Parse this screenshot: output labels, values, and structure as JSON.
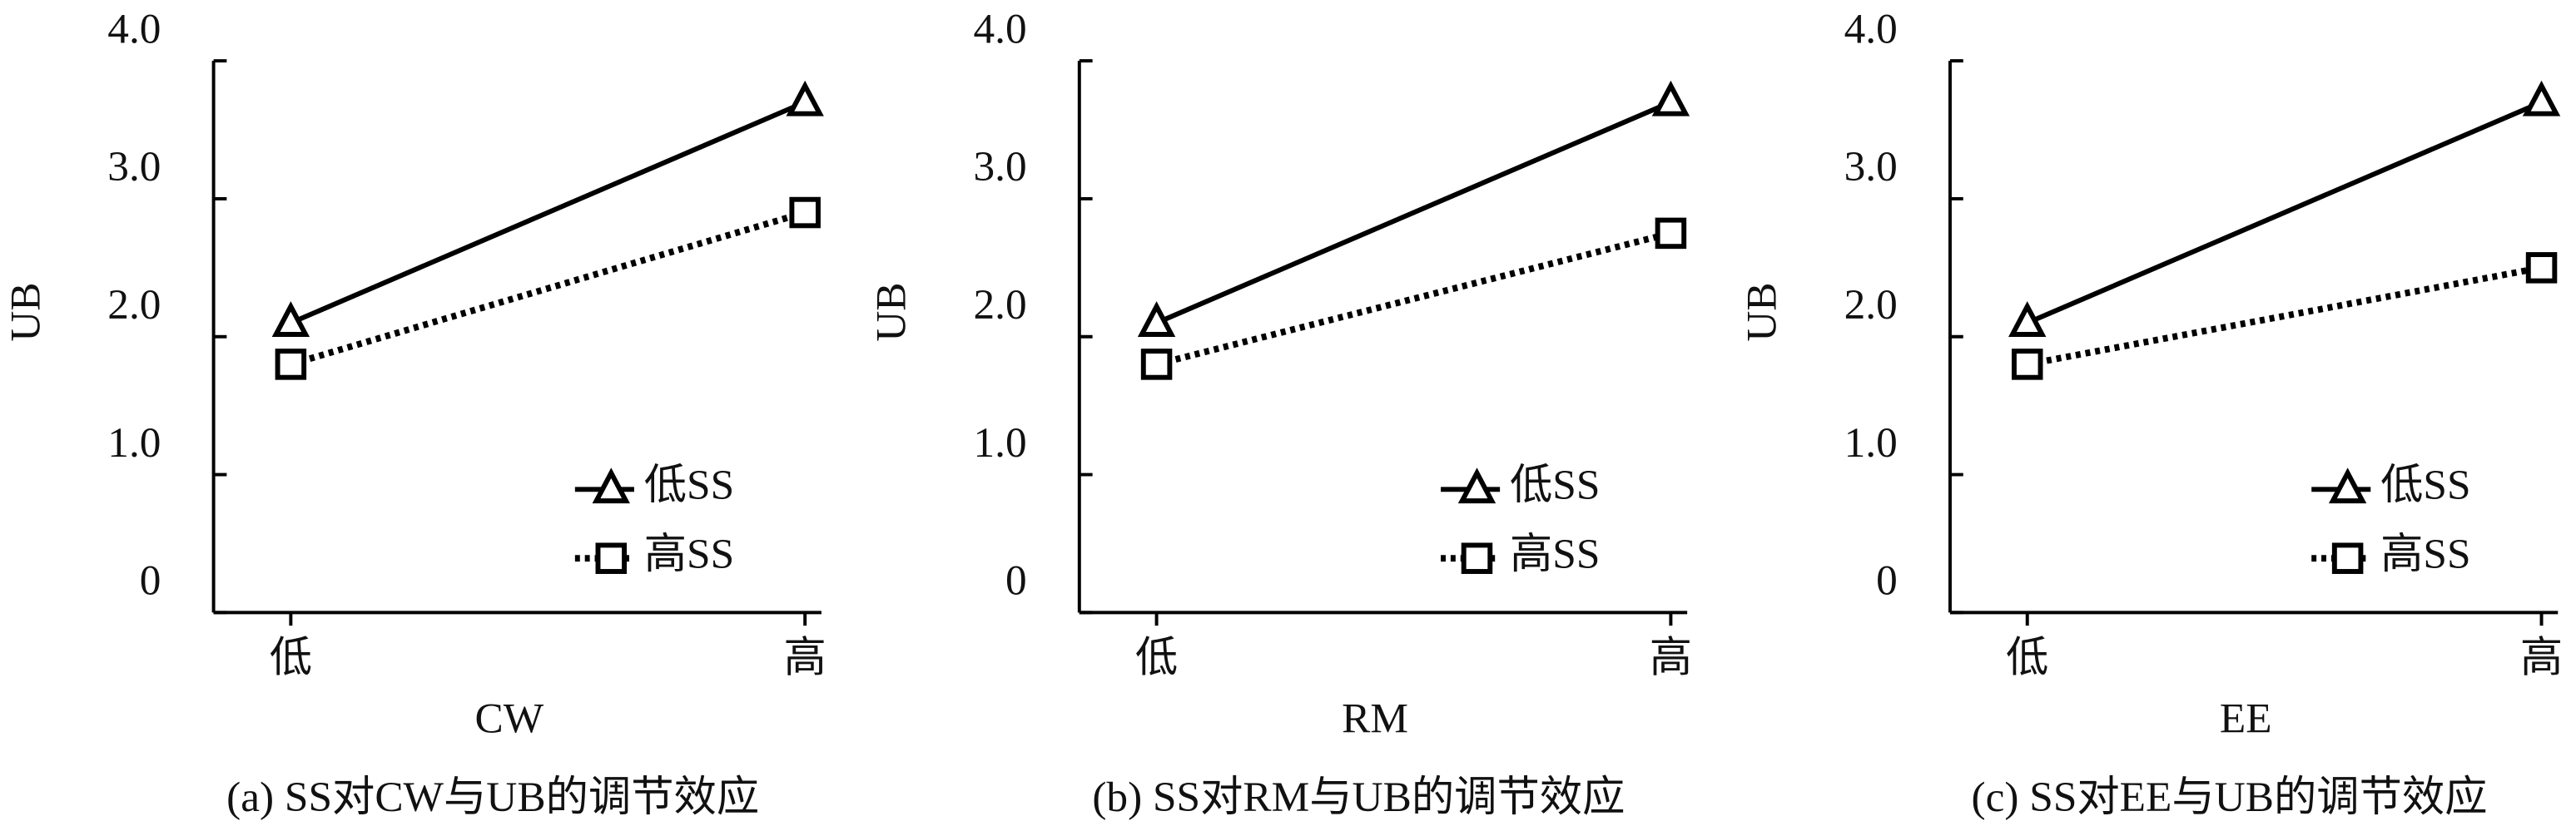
{
  "chart_data": [
    {
      "type": "line",
      "title": "(a) SS对CW与UB的调节效应",
      "xlabel": "CW",
      "ylabel": "UB",
      "categories": [
        "低",
        "高"
      ],
      "series": [
        {
          "name": "低SS",
          "color": "#000000",
          "marker": "triangle",
          "linestyle": "solid",
          "values": [
            2.1,
            3.7
          ]
        },
        {
          "name": "高SS",
          "color": "#000000",
          "marker": "square",
          "linestyle": "dotted",
          "values": [
            1.8,
            2.9
          ]
        }
      ],
      "ylim": [
        0,
        4
      ],
      "yticks": [
        0,
        {
          "value": 1,
          "label": "1.0"
        },
        {
          "value": 2,
          "label": "2.0"
        },
        {
          "value": 3,
          "label": "3.0"
        },
        {
          "value": 4,
          "label": "4.0"
        }
      ],
      "legend": "lower right"
    },
    {
      "type": "line",
      "title": "(b) SS对RM与UB的调节效应",
      "xlabel": "RM",
      "ylabel": "UB",
      "categories": [
        "低",
        "高"
      ],
      "series": [
        {
          "name": "低SS",
          "color": "#000000",
          "marker": "triangle",
          "linestyle": "solid",
          "values": [
            2.1,
            3.7
          ]
        },
        {
          "name": "高SS",
          "color": "#000000",
          "marker": "square",
          "linestyle": "dotted",
          "values": [
            1.8,
            2.75
          ]
        }
      ],
      "ylim": [
        0,
        4
      ],
      "yticks": [
        0,
        {
          "value": 1,
          "label": "1.0"
        },
        {
          "value": 2,
          "label": "2.0"
        },
        {
          "value": 3,
          "label": "3.0"
        },
        {
          "value": 4,
          "label": "4.0"
        }
      ],
      "legend": "lower right"
    },
    {
      "type": "line",
      "title": "(c) SS对EE与UB的调节效应",
      "xlabel": "EE",
      "ylabel": "UB",
      "categories": [
        "低",
        "高"
      ],
      "series": [
        {
          "name": "低SS",
          "color": "#000000",
          "marker": "triangle",
          "linestyle": "solid",
          "values": [
            2.1,
            3.7
          ]
        },
        {
          "name": "高SS",
          "color": "#000000",
          "marker": "square",
          "linestyle": "dotted",
          "values": [
            1.8,
            2.5
          ]
        }
      ],
      "ylim": [
        0,
        4
      ],
      "yticks": [
        0,
        {
          "value": 1,
          "label": "1.0"
        },
        {
          "value": 2,
          "label": "2.0"
        },
        {
          "value": 3,
          "label": "3.0"
        },
        {
          "value": 4,
          "label": "4.0"
        }
      ],
      "legend": "lower right"
    }
  ]
}
